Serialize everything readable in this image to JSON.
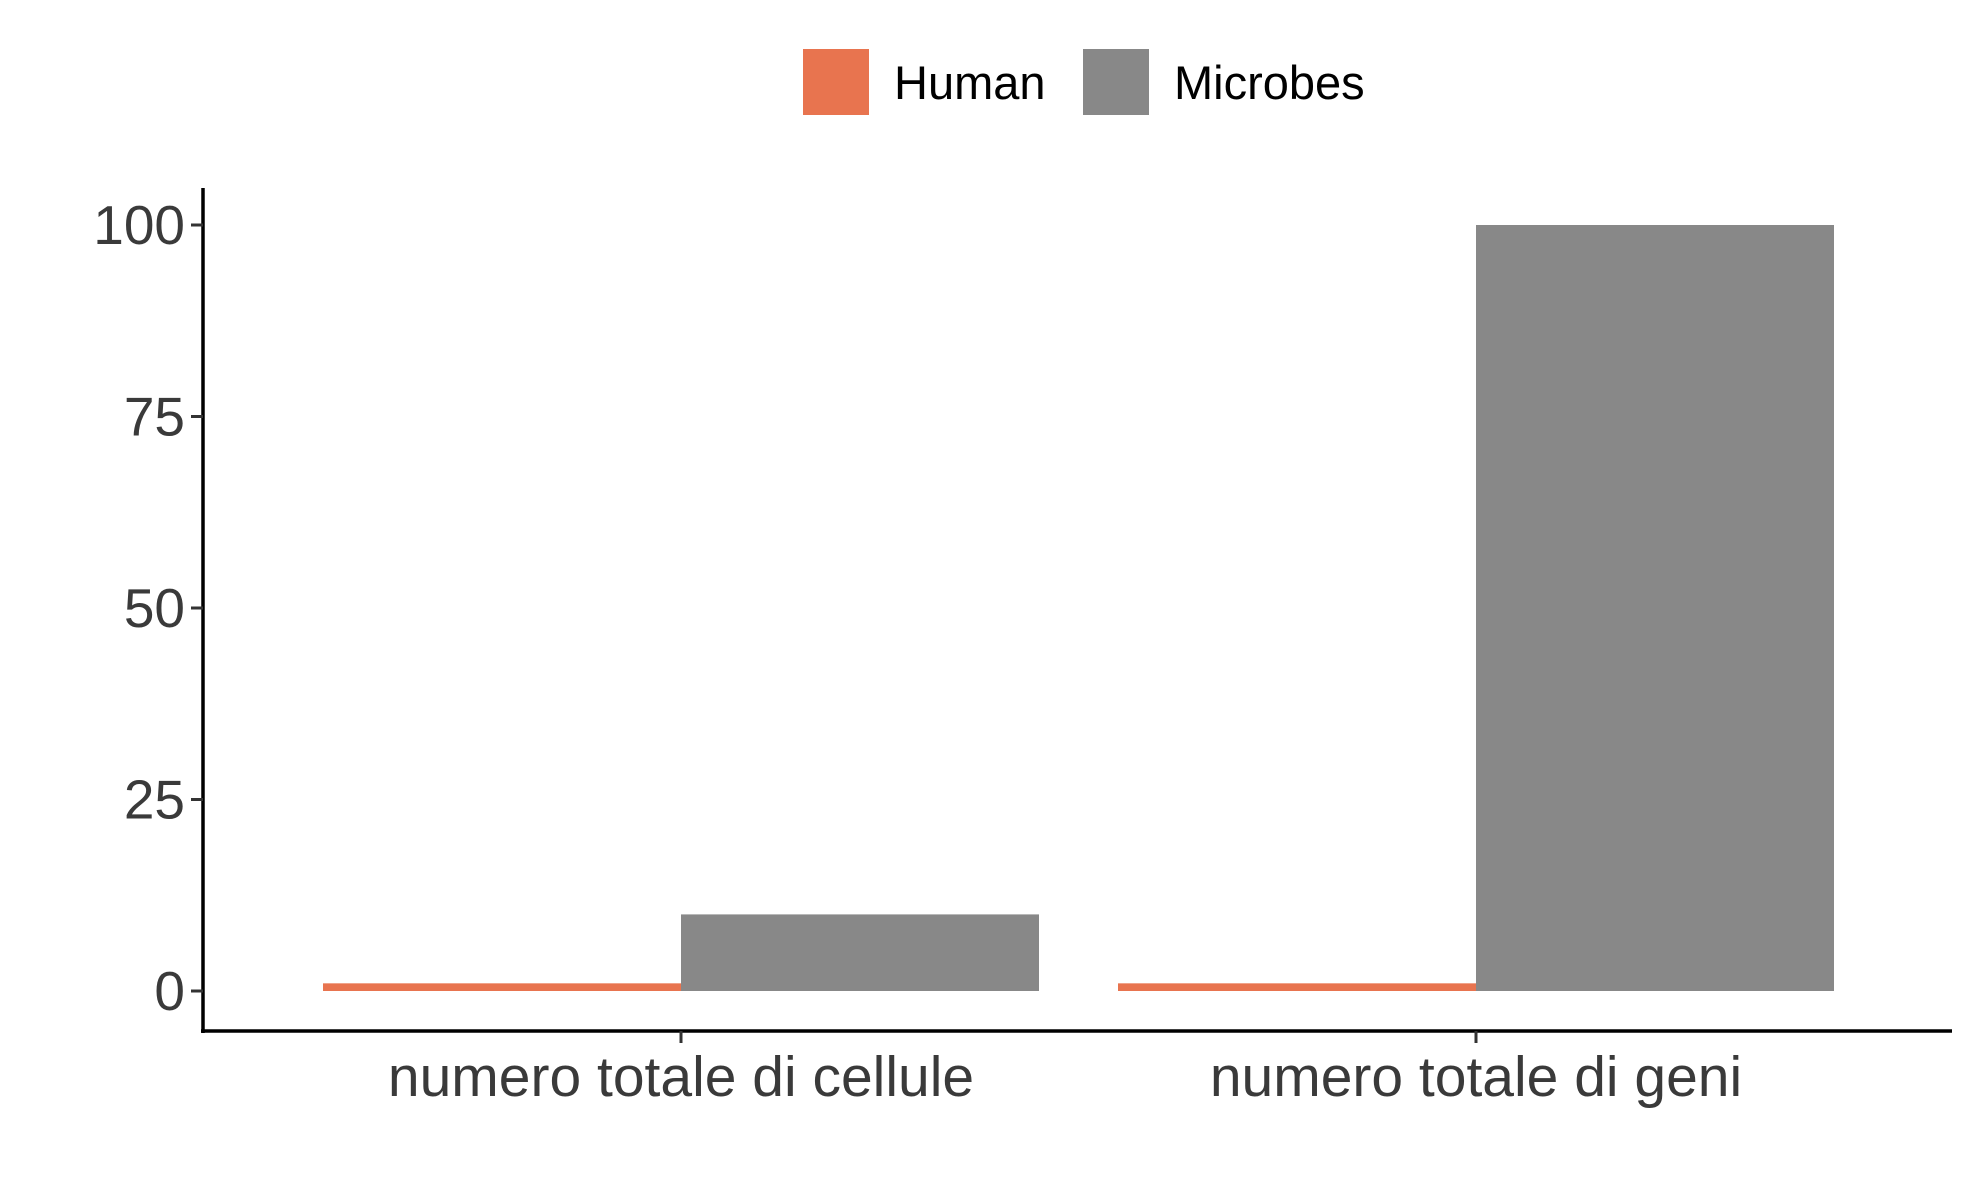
{
  "chart_data": {
    "type": "bar",
    "title": "",
    "xlabel": "",
    "ylabel": "",
    "categories": [
      "numero totale di cellule",
      "numero totale di geni"
    ],
    "series": [
      {
        "name": "Human",
        "values": [
          1,
          1
        ],
        "color": "#E8744F"
      },
      {
        "name": "Microbes",
        "values": [
          10,
          100
        ],
        "color": "#888888"
      }
    ],
    "ylim": [
      -5,
      105
    ],
    "yticks": [
      0,
      25,
      50,
      75,
      100
    ],
    "ytick_labels": [
      "0",
      "25",
      "50",
      "75",
      "100"
    ],
    "legend_position": "top",
    "grid": false
  }
}
